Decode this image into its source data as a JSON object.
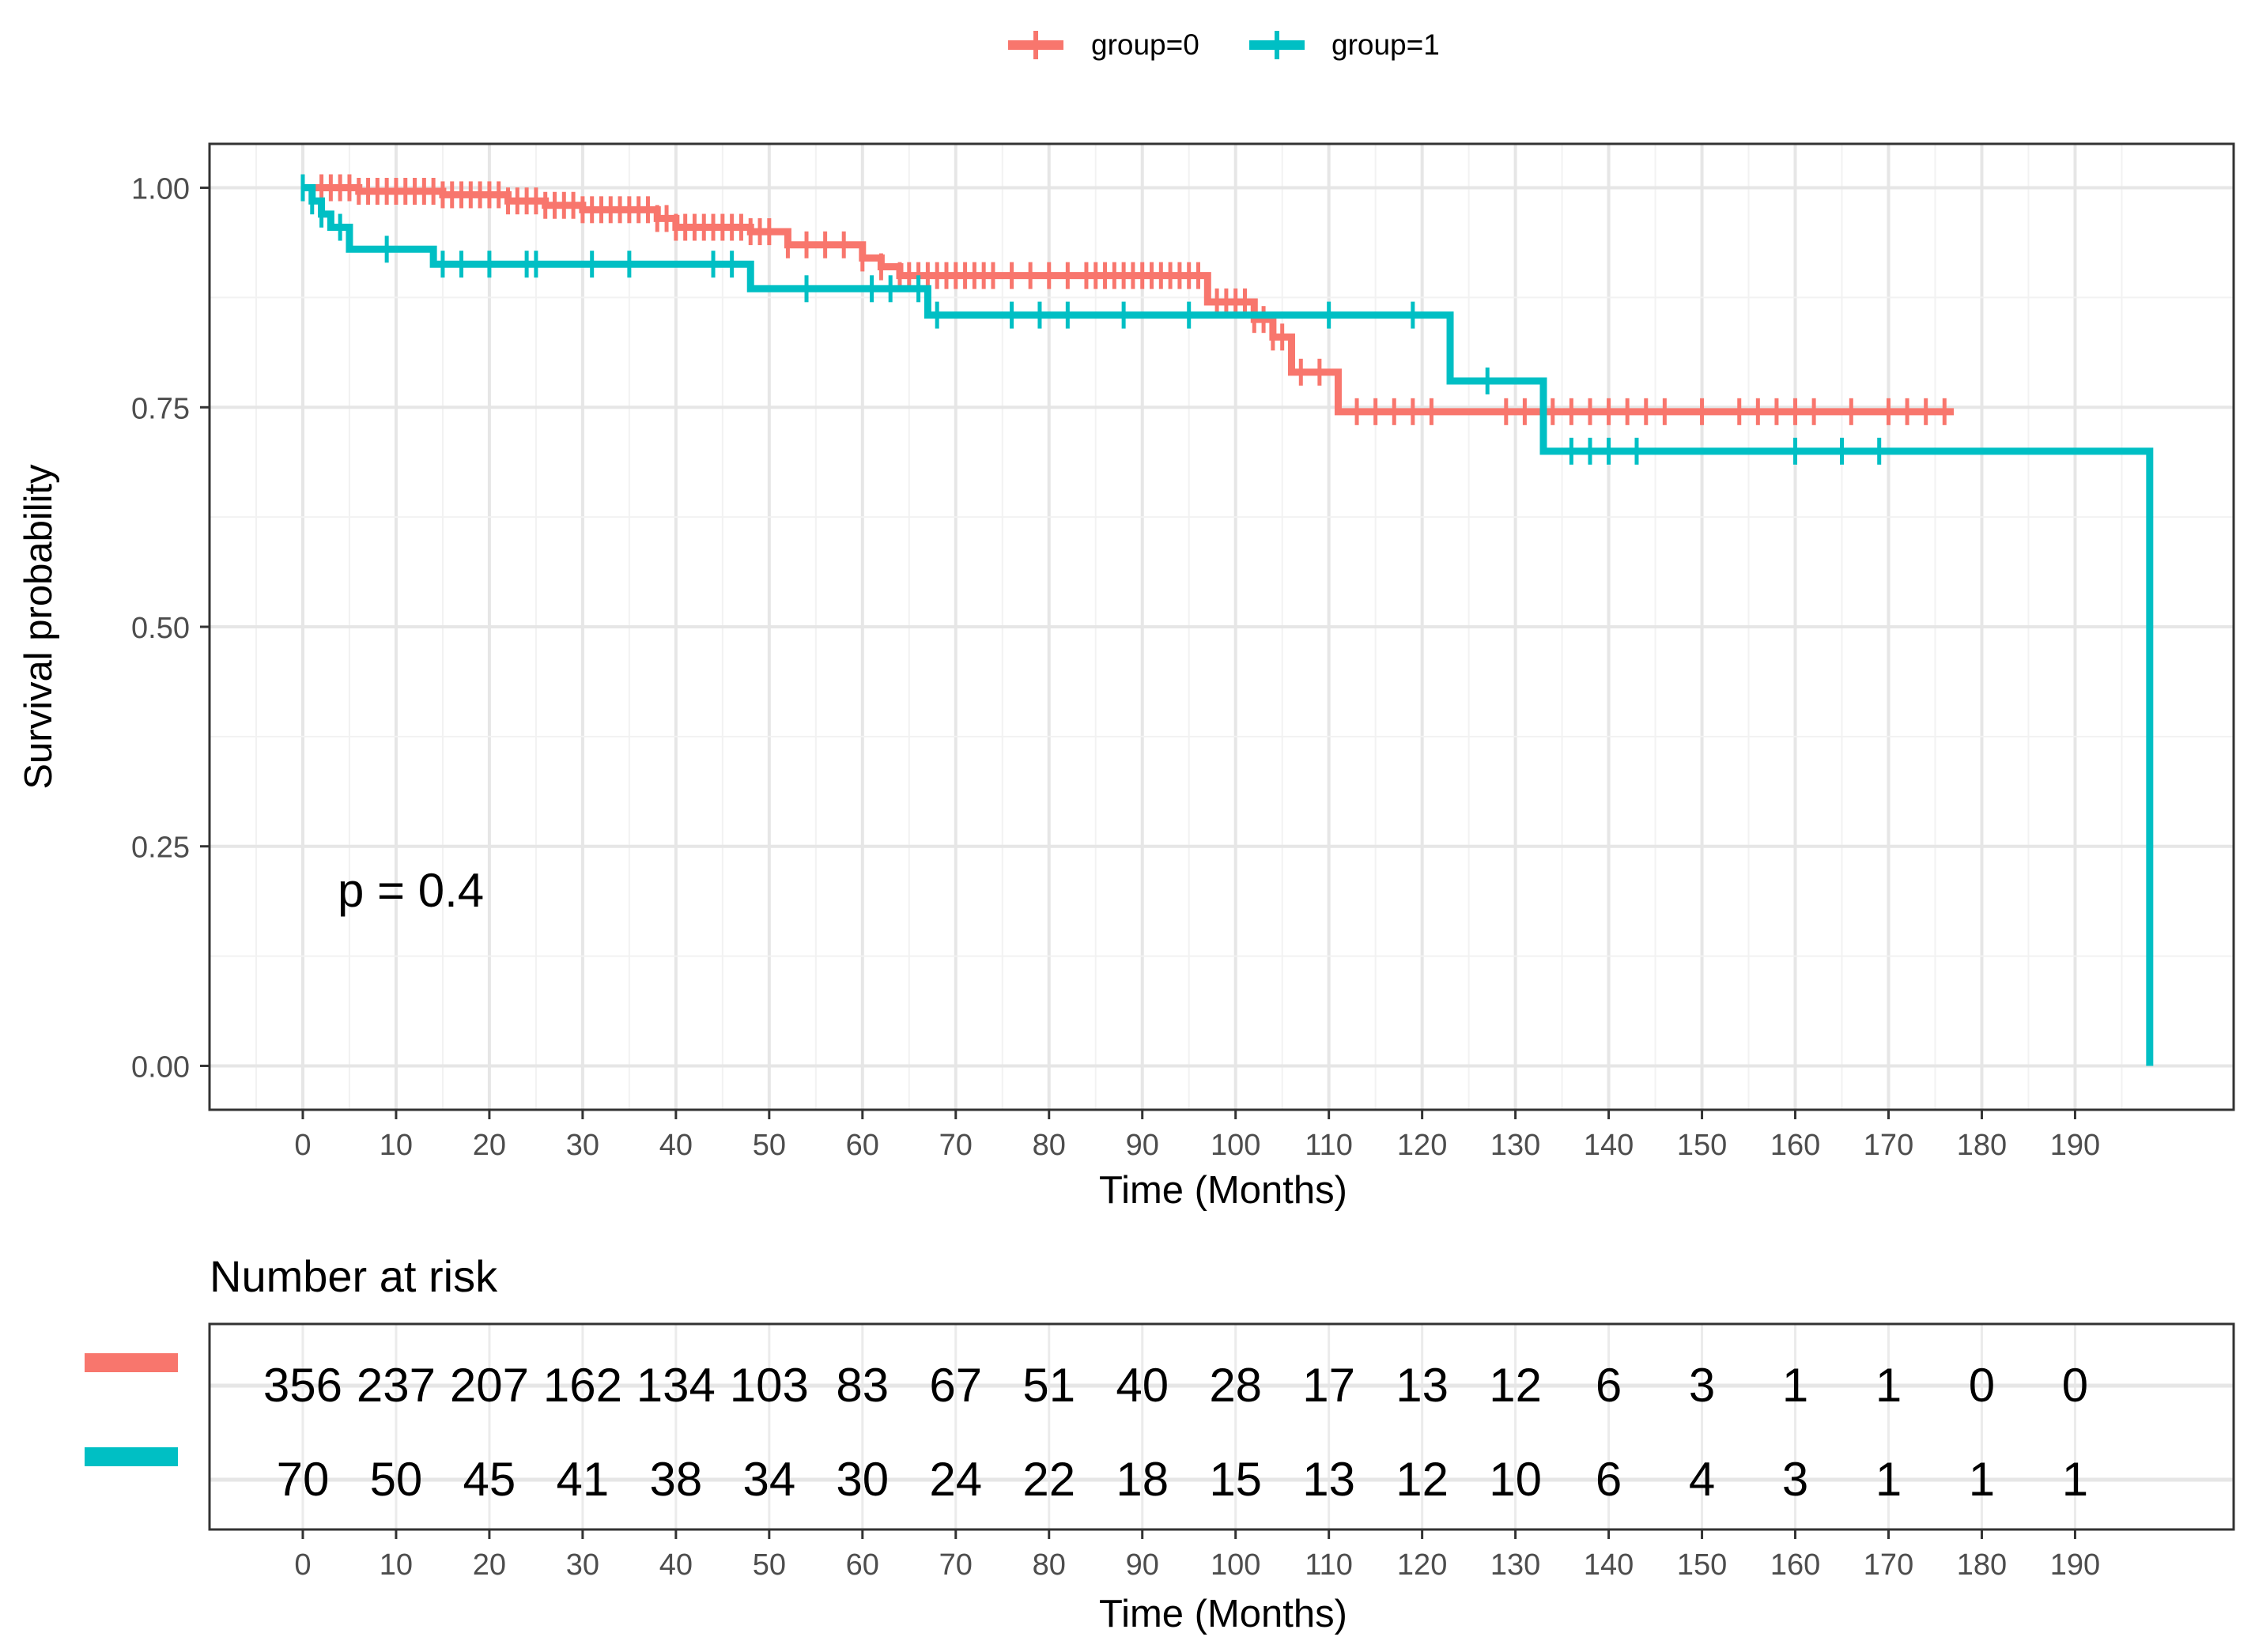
{
  "chart_data": [
    {
      "type": "line",
      "subtype": "kaplan-meier",
      "ylabel": "Survival probability",
      "xlabel": "Time (Months)",
      "xlim": [
        -10,
        207
      ],
      "ylim": [
        -0.05,
        1.05
      ],
      "xticks": [
        0,
        10,
        20,
        30,
        40,
        50,
        60,
        70,
        80,
        90,
        100,
        110,
        120,
        130,
        140,
        150,
        160,
        170,
        180,
        190
      ],
      "yticks": [
        0,
        0.25,
        0.5,
        0.75,
        1.0
      ],
      "ytick_labels": [
        "0.00",
        "0.25",
        "0.50",
        "0.75",
        "1.00"
      ],
      "grid": true,
      "legend_position": "top",
      "annotation": "p = 0.4",
      "series": [
        {
          "name": "group=0",
          "color": "#F8766D",
          "steps": [
            [
              0,
              1.0
            ],
            [
              6,
              0.996
            ],
            [
              15,
              0.992
            ],
            [
              22,
              0.985
            ],
            [
              26,
              0.98
            ],
            [
              30,
              0.975
            ],
            [
              38,
              0.965
            ],
            [
              40,
              0.955
            ],
            [
              48,
              0.95
            ],
            [
              52,
              0.935
            ],
            [
              60,
              0.92
            ],
            [
              62,
              0.91
            ],
            [
              64,
              0.9
            ],
            [
              97,
              0.87
            ],
            [
              102,
              0.85
            ],
            [
              104,
              0.83
            ],
            [
              106,
              0.79
            ],
            [
              111,
              0.745
            ],
            [
              177,
              0.745
            ]
          ],
          "censor_times": [
            2,
            3,
            4,
            5,
            6,
            7,
            8,
            9,
            10,
            11,
            12,
            13,
            14,
            15,
            16,
            17,
            18,
            19,
            20,
            21,
            22,
            23,
            24,
            25,
            26,
            27,
            28,
            29,
            30,
            31,
            32,
            33,
            34,
            35,
            36,
            37,
            38,
            39,
            40,
            41,
            42,
            43,
            44,
            45,
            46,
            47,
            48,
            49,
            50,
            52,
            54,
            56,
            58,
            60,
            62,
            64,
            65,
            66,
            67,
            68,
            69,
            70,
            71,
            72,
            73,
            74,
            76,
            78,
            80,
            82,
            84,
            85,
            86,
            87,
            88,
            89,
            90,
            91,
            92,
            93,
            94,
            95,
            96,
            98,
            99,
            100,
            101,
            102,
            103,
            104,
            105,
            107,
            109,
            113,
            115,
            117,
            119,
            121,
            129,
            131,
            134,
            136,
            138,
            140,
            142,
            144,
            146,
            150,
            154,
            156,
            158,
            160,
            162,
            166,
            170,
            172,
            174,
            176
          ]
        },
        {
          "name": "group=1",
          "color": "#00BFC4",
          "steps": [
            [
              0,
              1.0
            ],
            [
              1,
              0.985
            ],
            [
              2,
              0.97
            ],
            [
              3,
              0.955
            ],
            [
              5,
              0.93
            ],
            [
              14,
              0.913
            ],
            [
              48,
              0.885
            ],
            [
              67,
              0.855
            ],
            [
              123,
              0.78
            ],
            [
              133,
              0.7
            ],
            [
              198,
              0.7
            ],
            [
              198,
              0.0
            ]
          ],
          "censor_times": [
            0,
            1,
            2,
            4,
            9,
            15,
            17,
            20,
            24,
            25,
            31,
            35,
            44,
            46,
            54,
            61,
            63,
            66,
            68,
            76,
            79,
            82,
            88,
            95,
            110,
            119,
            127,
            136,
            138,
            140,
            143,
            160,
            165,
            169
          ]
        }
      ]
    },
    {
      "type": "table",
      "title": "Number at risk",
      "xlabel": "Time (Months)",
      "xlim": [
        -10,
        207
      ],
      "xticks": [
        0,
        10,
        20,
        30,
        40,
        50,
        60,
        70,
        80,
        90,
        100,
        110,
        120,
        130,
        140,
        150,
        160,
        170,
        180,
        190
      ],
      "rows": [
        {
          "name": "group=0",
          "color": "#F8766D",
          "values": [
            356,
            237,
            207,
            162,
            134,
            103,
            83,
            67,
            51,
            40,
            28,
            17,
            13,
            12,
            6,
            3,
            1,
            1,
            0,
            0
          ]
        },
        {
          "name": "group=1",
          "color": "#00BFC4",
          "values": [
            70,
            50,
            45,
            41,
            38,
            34,
            30,
            24,
            22,
            18,
            15,
            13,
            12,
            10,
            6,
            4,
            3,
            1,
            1,
            1
          ]
        }
      ]
    }
  ]
}
